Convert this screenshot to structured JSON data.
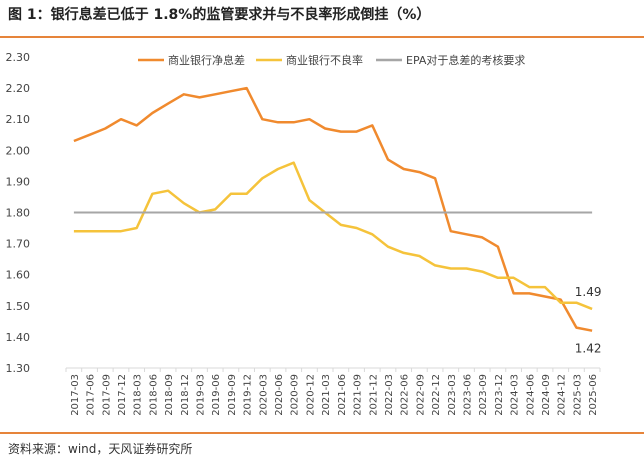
{
  "header": {
    "title": "图 1：银行息差已低于 1.8%的监管要求并与不良率形成倒挂（%）"
  },
  "footer": {
    "source": "资料来源：wind，天风证券研究所"
  },
  "colors": {
    "nim": "#f08a2e",
    "npl": "#f5c33b",
    "epa": "#a6a6a6",
    "rule": "#e6843a"
  },
  "chart_data": {
    "type": "line",
    "title": "银行息差已低于 1.8%的监管要求并与不良率形成倒挂（%）",
    "xlabel": "",
    "ylabel": "",
    "ylim": [
      1.3,
      2.3
    ],
    "yticks": [
      "2.30",
      "2.20",
      "2.10",
      "2.00",
      "1.90",
      "1.80",
      "1.70",
      "1.60",
      "1.50",
      "1.40",
      "1.30"
    ],
    "categories": [
      "2017-03",
      "2017-06",
      "2017-09",
      "2017-12",
      "2018-03",
      "2018-06",
      "2018-09",
      "2018-12",
      "2019-03",
      "2019-06",
      "2019-09",
      "2019-12",
      "2020-03",
      "2020-06",
      "2020-09",
      "2020-12",
      "2021-03",
      "2021-06",
      "2021-09",
      "2021-12",
      "2022-03",
      "2022-06",
      "2022-09",
      "2022-12",
      "2023-03",
      "2023-06",
      "2023-09",
      "2023-12",
      "2024-03",
      "2024-06",
      "2024-09",
      "2024-12",
      "2025-03",
      "2025-06"
    ],
    "series": [
      {
        "name": "商业银行净息差",
        "values": [
          2.03,
          2.05,
          2.07,
          2.1,
          2.08,
          2.12,
          2.15,
          2.18,
          2.17,
          2.18,
          2.19,
          2.2,
          2.1,
          2.09,
          2.09,
          2.1,
          2.07,
          2.06,
          2.06,
          2.08,
          1.97,
          1.94,
          1.93,
          1.91,
          1.74,
          1.73,
          1.72,
          1.69,
          1.54,
          1.54,
          1.53,
          1.52,
          1.43,
          1.42
        ]
      },
      {
        "name": "商业银行不良率",
        "values": [
          1.74,
          1.74,
          1.74,
          1.74,
          1.75,
          1.86,
          1.87,
          1.83,
          1.8,
          1.81,
          1.86,
          1.86,
          1.91,
          1.94,
          1.96,
          1.84,
          1.8,
          1.76,
          1.75,
          1.73,
          1.69,
          1.67,
          1.66,
          1.63,
          1.62,
          1.62,
          1.61,
          1.59,
          1.59,
          1.56,
          1.56,
          1.51,
          1.51,
          1.49
        ]
      },
      {
        "name": "EPA对于息差的考核要求",
        "values": [
          1.8,
          1.8,
          1.8,
          1.8,
          1.8,
          1.8,
          1.8,
          1.8,
          1.8,
          1.8,
          1.8,
          1.8,
          1.8,
          1.8,
          1.8,
          1.8,
          1.8,
          1.8,
          1.8,
          1.8,
          1.8,
          1.8,
          1.8,
          1.8,
          1.8,
          1.8,
          1.8,
          1.8,
          1.8,
          1.8,
          1.8,
          1.8,
          1.8,
          1.8
        ]
      }
    ],
    "annotations": [
      {
        "text": "1.49",
        "series": "商业银行不良率",
        "category": "2025-06"
      },
      {
        "text": "1.42",
        "series": "商业银行净息差",
        "category": "2025-06"
      }
    ],
    "legend_position": "top"
  }
}
